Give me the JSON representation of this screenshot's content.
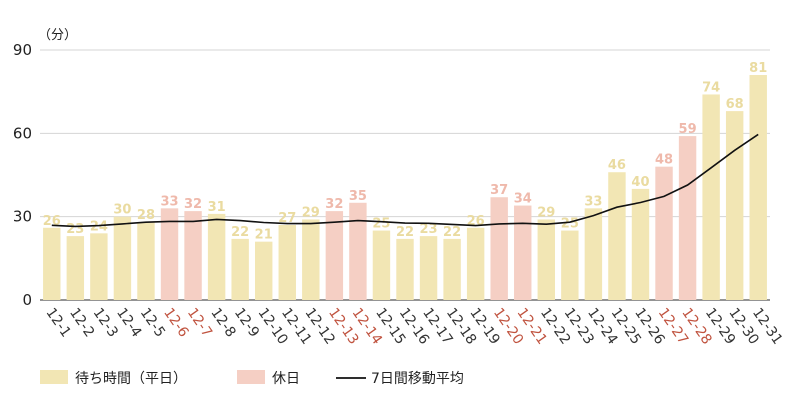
{
  "chart_data": {
    "type": "bar",
    "y_unit_label": "（分）",
    "ylim": [
      0,
      90
    ],
    "y_ticks": [
      0,
      30,
      60,
      90
    ],
    "grid": true,
    "legend_position": "bottom-left",
    "categories": [
      "12-1",
      "12-2",
      "12-3",
      "12-4",
      "12-5",
      "12-6",
      "12-7",
      "12-8",
      "12-9",
      "12-10",
      "12-11",
      "12-12",
      "12-13",
      "12-14",
      "12-15",
      "12-16",
      "12-17",
      "12-18",
      "12-19",
      "12-20",
      "12-21",
      "12-22",
      "12-23",
      "12-24",
      "12-25",
      "12-26",
      "12-27",
      "12-28",
      "12-29",
      "12-30",
      "12-31"
    ],
    "day_type": [
      "weekday",
      "weekday",
      "weekday",
      "weekday",
      "weekday",
      "holiday",
      "holiday",
      "weekday",
      "weekday",
      "weekday",
      "weekday",
      "weekday",
      "holiday",
      "holiday",
      "weekday",
      "weekday",
      "weekday",
      "weekday",
      "weekday",
      "holiday",
      "holiday",
      "weekday",
      "weekday",
      "weekday",
      "weekday",
      "weekday",
      "holiday",
      "holiday",
      "weekday",
      "weekday",
      "weekday"
    ],
    "values": [
      26,
      23,
      24,
      30,
      28,
      33,
      32,
      31,
      22,
      21,
      27,
      29,
      32,
      35,
      25,
      22,
      23,
      22,
      26,
      37,
      34,
      29,
      25,
      33,
      46,
      40,
      48,
      59,
      74,
      68,
      81
    ],
    "moving_average": [
      26.9,
      26.5,
      26.8,
      27.4,
      28.0,
      28.3,
      28.3,
      29.0,
      28.6,
      27.9,
      27.5,
      27.5,
      28.0,
      28.6,
      28.2,
      27.7,
      27.6,
      27.2,
      26.8,
      27.4,
      27.6,
      27.3,
      28.0,
      30.4,
      33.4,
      35.1,
      37.3,
      41.4,
      47.6,
      53.9,
      59.6
    ],
    "series": [
      {
        "name": "待ち時間（平日）",
        "color": "#f2e6b4"
      },
      {
        "name": "休日",
        "color": "#f5cfc4"
      },
      {
        "name": "7日間移動平均",
        "color": "#111111"
      }
    ],
    "colors": {
      "weekday_bar": "#f2e6b4",
      "holiday_bar": "#f5cfc4",
      "weekday_label": "#eadba0",
      "holiday_label": "#efb9ab",
      "weekday_xlabel": "#333333",
      "holiday_xlabel": "#c0533f",
      "grid": "#d4d4d4",
      "moving_average_line": "#111111"
    }
  }
}
